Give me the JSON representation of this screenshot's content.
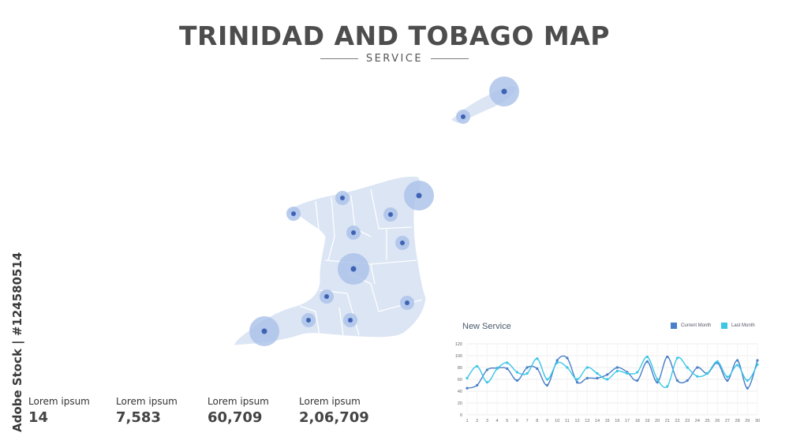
{
  "title": "TRINIDAD AND TOBAGO MAP",
  "subtitle": "SERVICE",
  "stock_credit": "Adobe Stock | #124580514",
  "stats": [
    {
      "label": "Lorem ipsum",
      "value": "14"
    },
    {
      "label": "Lorem ipsum",
      "value": "7,583"
    },
    {
      "label": "Lorem ipsum",
      "value": "60,709"
    },
    {
      "label": "Lorem ipsum",
      "value": "2,06,709"
    }
  ],
  "colors": {
    "land": "#dbe5f4",
    "marker_ring": "#a9c0e8",
    "marker_dot": "#3f63b4",
    "current_month": "#4a80c8",
    "last_month": "#3cc6e6"
  },
  "chart_data": {
    "type": "line",
    "title": "New Service",
    "x": [
      1,
      2,
      3,
      4,
      5,
      6,
      7,
      8,
      9,
      10,
      11,
      12,
      13,
      14,
      15,
      16,
      17,
      18,
      19,
      20,
      21,
      22,
      23,
      24,
      25,
      26,
      27,
      28,
      29,
      30
    ],
    "ylim": [
      0,
      120
    ],
    "yticks": [
      0,
      20,
      40,
      60,
      80,
      100,
      120
    ],
    "grid": true,
    "legend_position": "top-right",
    "series": [
      {
        "name": "Current Month",
        "color": "#4a80c8",
        "values": [
          45,
          50,
          76,
          79,
          78,
          58,
          80,
          78,
          50,
          92,
          96,
          55,
          62,
          62,
          68,
          80,
          72,
          58,
          90,
          55,
          98,
          58,
          58,
          80,
          70,
          88,
          58,
          92,
          45,
          92
        ]
      },
      {
        "name": "Last Month",
        "color": "#3cc6e6",
        "values": [
          62,
          82,
          55,
          78,
          88,
          72,
          70,
          95,
          60,
          88,
          80,
          60,
          80,
          70,
          60,
          74,
          70,
          72,
          98,
          60,
          48,
          96,
          80,
          65,
          70,
          90,
          64,
          84,
          58,
          85
        ]
      }
    ]
  }
}
